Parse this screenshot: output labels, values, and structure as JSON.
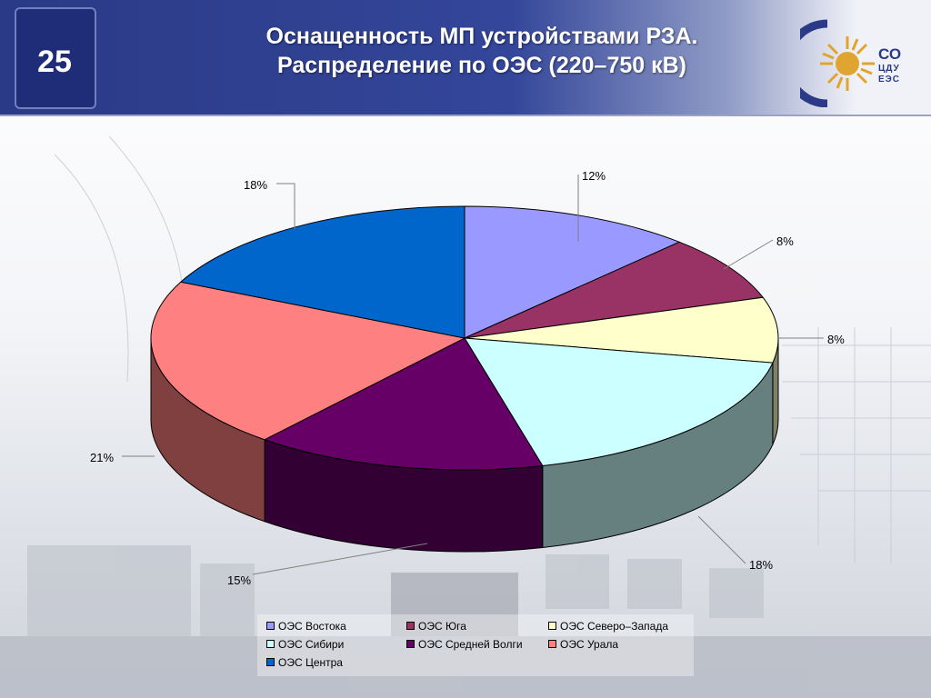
{
  "slide": {
    "number": "25",
    "title_line1": "Оснащенность МП устройствами РЗА.",
    "title_line2": "Распределение по ОЭС (220–750 кВ)"
  },
  "logo": {
    "line1": "СО",
    "line2": "ЦДУ",
    "line3": "ЕЭС",
    "colors": {
      "sun": "#e0a431",
      "arc": "#2b3a86"
    },
    "icon": "sun-logo-icon"
  },
  "chart_data": {
    "type": "pie",
    "style": "3d",
    "legend_position": "bottom",
    "series": [
      {
        "name": "ОЭС Востока",
        "value": 12,
        "label": "12%",
        "color": "#9999ff"
      },
      {
        "name": "ОЭС Юга",
        "value": 8,
        "label": "8%",
        "color": "#993366"
      },
      {
        "name": "ОЭС Северо–Запада",
        "value": 8,
        "label": "8%",
        "color": "#ffffcc"
      },
      {
        "name": "ОЭС Сибири",
        "value": 18,
        "label": "18%",
        "color": "#ccffff"
      },
      {
        "name": "ОЭС Средней Волги",
        "value": 15,
        "label": "15%",
        "color": "#660066"
      },
      {
        "name": "ОЭС Урала",
        "value": 21,
        "label": "21%",
        "color": "#ff8080"
      },
      {
        "name": "ОЭС Центра",
        "value": 18,
        "label": "18%",
        "color": "#0066cc"
      }
    ]
  }
}
